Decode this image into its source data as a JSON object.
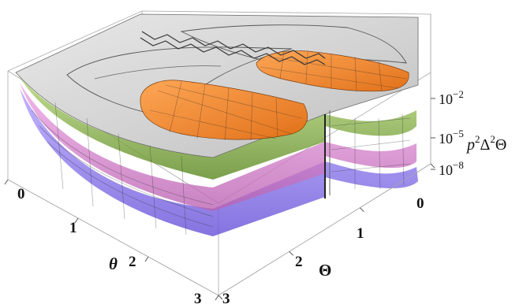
{
  "chart_data": {
    "type": "surface3d",
    "title": "",
    "xlabel": "θ",
    "ylabel": "Θ",
    "zlabel": "p²Δ²Θ",
    "zlabel_base": "p",
    "zlabel_exp1": "2",
    "zlabel_mid": "Δ",
    "zlabel_exp2": "2",
    "zlabel_tail": "Θ",
    "z_scale": "log",
    "x_ticks": [
      "0",
      "1",
      "2",
      "3"
    ],
    "y_ticks": [
      "0",
      "1",
      "2",
      "3"
    ],
    "z_ticks": [
      {
        "base": "10",
        "exp": "−2"
      },
      {
        "base": "10",
        "exp": "−5"
      },
      {
        "base": "10",
        "exp": "−8"
      }
    ],
    "series": [
      {
        "color": "#f08a2a",
        "layer": 1
      },
      {
        "color": "#c8c8c8",
        "layer": 2
      },
      {
        "color": "#7fa63a",
        "layer": 3
      },
      {
        "color": "#d77ac8",
        "layer": 4
      },
      {
        "color": "#7e6ef0",
        "layer": 5
      }
    ],
    "grid": true
  }
}
